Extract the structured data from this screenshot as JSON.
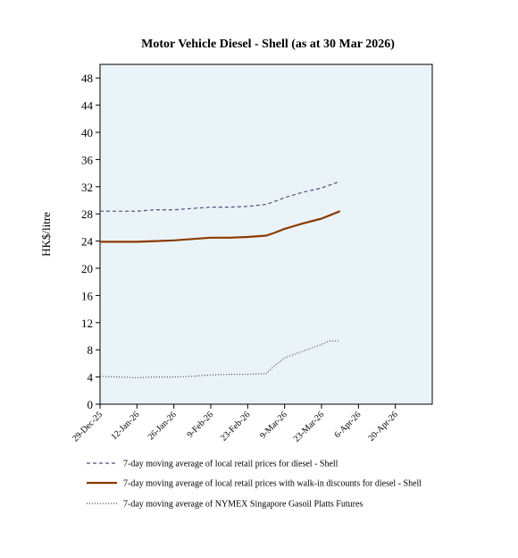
{
  "chart_data": {
    "type": "line",
    "title": "Motor Vehicle Diesel - Shell (as at 30 Mar 2026)",
    "ylabel": "HK$/litre",
    "xlabel": "",
    "ylim": [
      0,
      50
    ],
    "yticks": [
      0,
      4,
      8,
      12,
      16,
      20,
      24,
      28,
      32,
      36,
      40,
      44,
      48
    ],
    "xlim": [
      "2025-12-29",
      "2026-05-04"
    ],
    "xticks": [
      {
        "date": "2025-12-29",
        "label": "29-Dec-25"
      },
      {
        "date": "2026-01-12",
        "label": "12-Jan-26"
      },
      {
        "date": "2026-01-26",
        "label": "26-Jan-26"
      },
      {
        "date": "2026-02-09",
        "label": "9-Feb-26"
      },
      {
        "date": "2026-02-23",
        "label": "23-Feb-26"
      },
      {
        "date": "2026-03-09",
        "label": "9-Mar-26"
      },
      {
        "date": "2026-03-23",
        "label": "23-Mar-26"
      },
      {
        "date": "2026-04-06",
        "label": "6-Apr-26"
      },
      {
        "date": "2026-04-20",
        "label": "20-Apr-26"
      }
    ],
    "grid": false,
    "legend_position": "bottom",
    "colors": {
      "plot_bg": "#eaf4f8",
      "axis": "#000000"
    },
    "series": [
      {
        "name": "7-day moving average of local retail prices for diesel - Shell",
        "color": "#4d4d7a",
        "dash": "4,3",
        "width": 1.2,
        "points": [
          [
            "2025-12-29",
            28.4
          ],
          [
            "2026-01-05",
            28.4
          ],
          [
            "2026-01-12",
            28.4
          ],
          [
            "2026-01-19",
            28.6
          ],
          [
            "2026-01-26",
            28.6
          ],
          [
            "2026-02-02",
            28.8
          ],
          [
            "2026-02-09",
            29.0
          ],
          [
            "2026-02-16",
            29.0
          ],
          [
            "2026-02-23",
            29.1
          ],
          [
            "2026-03-02",
            29.4
          ],
          [
            "2026-03-05",
            29.8
          ],
          [
            "2026-03-09",
            30.4
          ],
          [
            "2026-03-16",
            31.2
          ],
          [
            "2026-03-23",
            31.8
          ],
          [
            "2026-03-30",
            32.8
          ]
        ]
      },
      {
        "name": "7-day moving average of local retail prices with walk-in discounts for diesel - Shell",
        "color": "#8b3a00",
        "dash": "",
        "width": 2.2,
        "points": [
          [
            "2025-12-29",
            23.9
          ],
          [
            "2026-01-05",
            23.9
          ],
          [
            "2026-01-12",
            23.9
          ],
          [
            "2026-01-19",
            24.0
          ],
          [
            "2026-01-26",
            24.1
          ],
          [
            "2026-02-02",
            24.3
          ],
          [
            "2026-02-09",
            24.5
          ],
          [
            "2026-02-16",
            24.5
          ],
          [
            "2026-02-23",
            24.6
          ],
          [
            "2026-03-02",
            24.8
          ],
          [
            "2026-03-05",
            25.2
          ],
          [
            "2026-03-09",
            25.8
          ],
          [
            "2026-03-16",
            26.6
          ],
          [
            "2026-03-23",
            27.3
          ],
          [
            "2026-03-30",
            28.4
          ]
        ]
      },
      {
        "name": "7-day moving average of NYMEX Singapore Gasoil Platts Futures",
        "color": "#444444",
        "dash": "1,2",
        "width": 1.2,
        "points": [
          [
            "2025-12-29",
            4.1
          ],
          [
            "2026-01-05",
            4.0
          ],
          [
            "2026-01-12",
            3.9
          ],
          [
            "2026-01-19",
            4.0
          ],
          [
            "2026-01-26",
            4.0
          ],
          [
            "2026-02-02",
            4.1
          ],
          [
            "2026-02-09",
            4.3
          ],
          [
            "2026-02-16",
            4.4
          ],
          [
            "2026-02-23",
            4.4
          ],
          [
            "2026-03-02",
            4.5
          ],
          [
            "2026-03-05",
            5.6
          ],
          [
            "2026-03-09",
            6.8
          ],
          [
            "2026-03-16",
            7.8
          ],
          [
            "2026-03-23",
            8.8
          ],
          [
            "2026-03-26",
            9.3
          ],
          [
            "2026-03-30",
            9.3
          ]
        ]
      }
    ]
  }
}
